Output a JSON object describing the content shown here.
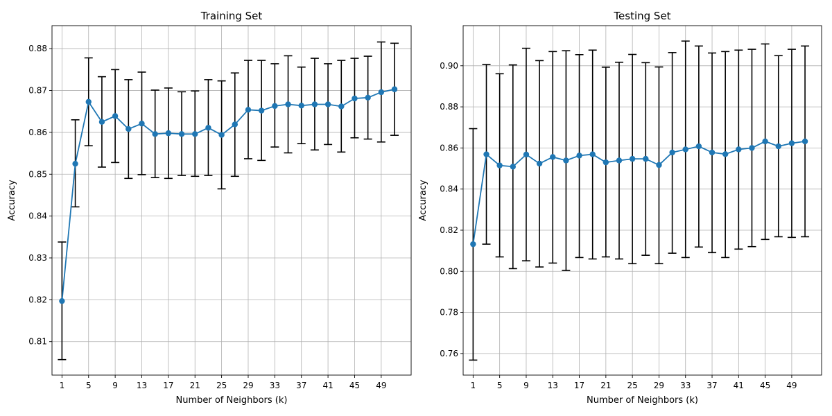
{
  "chart_data": [
    {
      "type": "line",
      "title": "Training Set",
      "xlabel": "Number of Neighbors (k)",
      "ylabel": "Accuracy",
      "xlim": [
        -0.5,
        53.5
      ],
      "ylim": [
        0.802,
        0.8855
      ],
      "xticks": [
        1,
        5,
        9,
        13,
        17,
        21,
        25,
        29,
        33,
        37,
        41,
        45,
        49
      ],
      "yticks": [
        0.81,
        0.82,
        0.83,
        0.84,
        0.85,
        0.86,
        0.87,
        0.88
      ],
      "ytick_decimals": 2,
      "grid": true,
      "x": [
        1,
        3,
        5,
        7,
        9,
        11,
        13,
        15,
        17,
        19,
        21,
        23,
        25,
        27,
        29,
        31,
        33,
        35,
        37,
        39,
        41,
        43,
        45,
        47,
        49,
        51
      ],
      "y": [
        0.8197,
        0.8525,
        0.8673,
        0.8625,
        0.8639,
        0.8608,
        0.8621,
        0.8596,
        0.8598,
        0.8596,
        0.8596,
        0.8611,
        0.8594,
        0.8619,
        0.8654,
        0.8652,
        0.8663,
        0.8667,
        0.8664,
        0.8667,
        0.8667,
        0.8662,
        0.8681,
        0.8683,
        0.8696,
        0.8703
      ],
      "err_low": [
        0.8057,
        0.8422,
        0.8568,
        0.8517,
        0.8528,
        0.849,
        0.8499,
        0.8492,
        0.849,
        0.8497,
        0.8495,
        0.8497,
        0.8465,
        0.8495,
        0.8537,
        0.8533,
        0.8565,
        0.8551,
        0.8573,
        0.8558,
        0.8571,
        0.8553,
        0.8587,
        0.8584,
        0.8577,
        0.8593
      ],
      "err_high": [
        0.8338,
        0.863,
        0.8778,
        0.8733,
        0.875,
        0.8726,
        0.8744,
        0.8701,
        0.8706,
        0.8697,
        0.8699,
        0.8726,
        0.8723,
        0.8742,
        0.8772,
        0.8772,
        0.8764,
        0.8783,
        0.8756,
        0.8777,
        0.8764,
        0.8772,
        0.8777,
        0.8782,
        0.8816,
        0.8813
      ],
      "color": "#1f77b4"
    },
    {
      "type": "line",
      "title": "Testing Set",
      "xlabel": "Number of Neighbors (k)",
      "ylabel": "Accuracy",
      "xlim": [
        -0.5,
        53.5
      ],
      "ylim": [
        0.7495,
        0.9195
      ],
      "xticks": [
        1,
        5,
        9,
        13,
        17,
        21,
        25,
        29,
        33,
        37,
        41,
        45,
        49
      ],
      "yticks": [
        0.76,
        0.78,
        0.8,
        0.82,
        0.84,
        0.86,
        0.88,
        0.9
      ],
      "ytick_decimals": 2,
      "grid": true,
      "x": [
        1,
        3,
        5,
        7,
        9,
        11,
        13,
        15,
        17,
        19,
        21,
        23,
        25,
        27,
        29,
        31,
        33,
        35,
        37,
        39,
        41,
        43,
        45,
        47,
        49,
        51
      ],
      "y": [
        0.8132,
        0.8569,
        0.8515,
        0.8509,
        0.8568,
        0.8524,
        0.8556,
        0.8539,
        0.8563,
        0.8569,
        0.853,
        0.8539,
        0.8547,
        0.8547,
        0.8517,
        0.8578,
        0.8593,
        0.8608,
        0.8578,
        0.857,
        0.8593,
        0.86,
        0.8632,
        0.8608,
        0.8623,
        0.8632
      ],
      "err_low": [
        0.7568,
        0.8132,
        0.807,
        0.8013,
        0.8051,
        0.8021,
        0.804,
        0.8004,
        0.8067,
        0.806,
        0.807,
        0.806,
        0.8037,
        0.8078,
        0.8037,
        0.8088,
        0.8067,
        0.8118,
        0.8091,
        0.8067,
        0.8108,
        0.812,
        0.8155,
        0.8168,
        0.8165,
        0.8168
      ],
      "err_high": [
        0.8694,
        0.9006,
        0.8961,
        0.9004,
        0.9085,
        0.9025,
        0.9069,
        0.9073,
        0.9054,
        0.9076,
        0.8993,
        0.9017,
        0.9055,
        0.9015,
        0.8994,
        0.9064,
        0.912,
        0.9096,
        0.9062,
        0.9069,
        0.9076,
        0.908,
        0.9106,
        0.9049,
        0.908,
        0.9096
      ],
      "color": "#1f77b4"
    }
  ]
}
